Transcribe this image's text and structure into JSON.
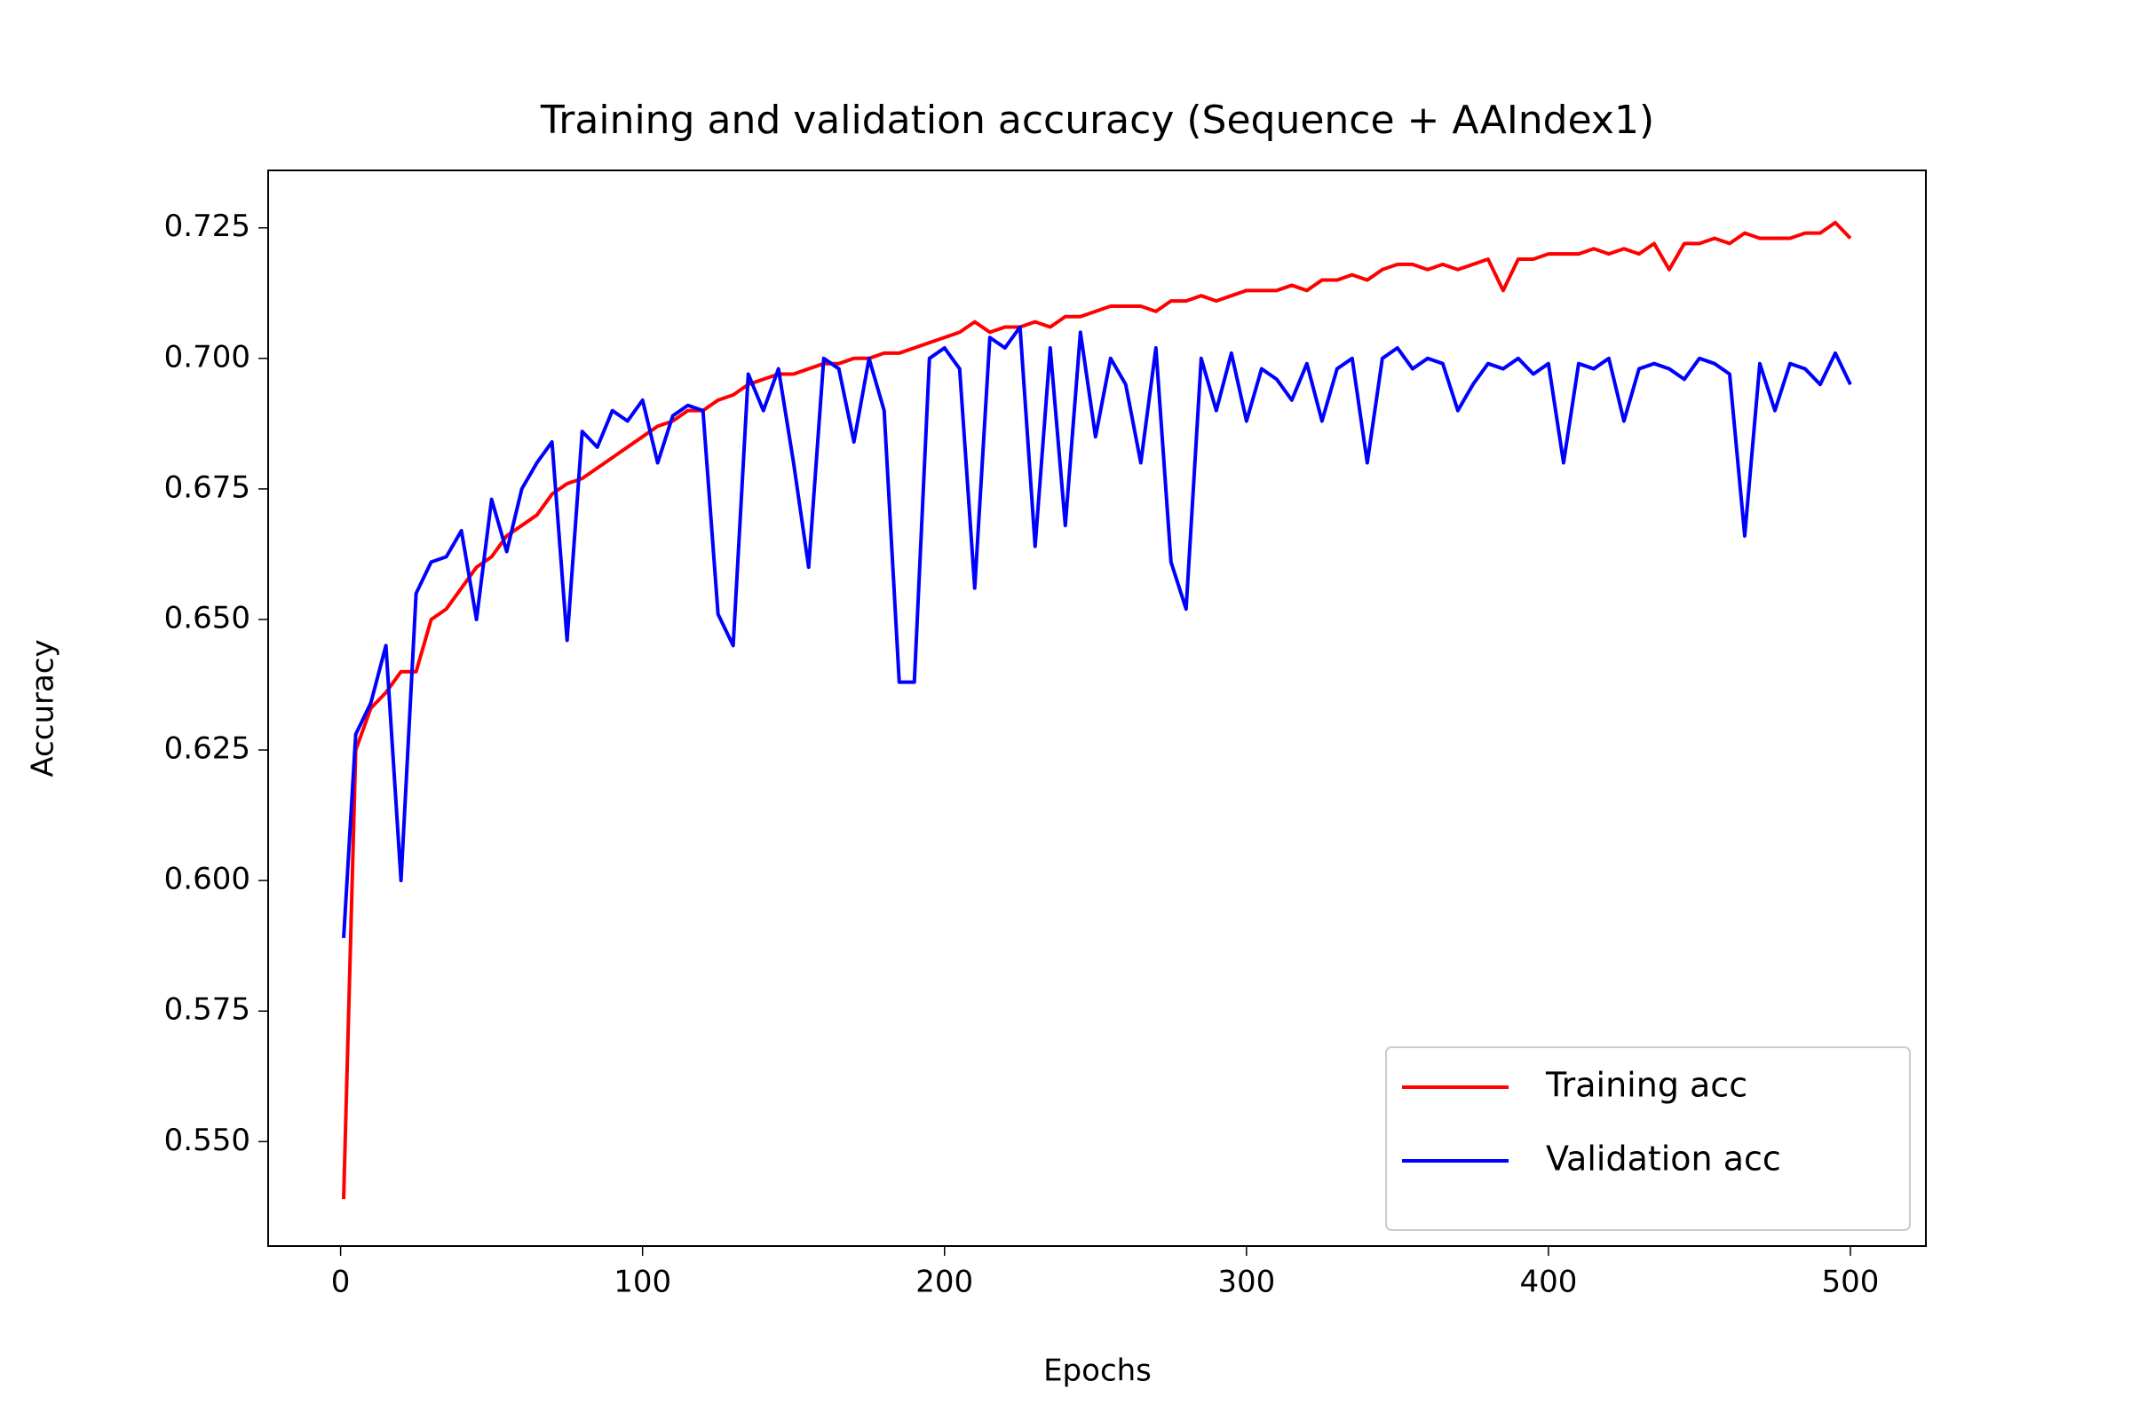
{
  "chart_data": {
    "type": "line",
    "title": "Training and validation accuracy (Sequence + AAIndex1)",
    "x_label": "Epochs",
    "y_label": "Accuracy",
    "x": [
      1,
      5,
      10,
      15,
      20,
      25,
      30,
      35,
      40,
      45,
      50,
      55,
      60,
      65,
      70,
      75,
      80,
      85,
      90,
      95,
      100,
      105,
      110,
      115,
      120,
      125,
      130,
      135,
      140,
      145,
      150,
      155,
      160,
      165,
      170,
      175,
      180,
      185,
      190,
      195,
      200,
      205,
      210,
      215,
      220,
      225,
      230,
      235,
      240,
      245,
      250,
      255,
      260,
      265,
      270,
      275,
      280,
      285,
      290,
      295,
      300,
      305,
      310,
      315,
      320,
      325,
      330,
      335,
      340,
      345,
      350,
      355,
      360,
      365,
      370,
      375,
      380,
      385,
      390,
      395,
      400,
      405,
      410,
      415,
      420,
      425,
      430,
      435,
      440,
      445,
      450,
      455,
      460,
      465,
      470,
      475,
      480,
      485,
      490,
      495,
      500
    ],
    "series": [
      {
        "name": "Training acc",
        "color": "#ff0000",
        "values": [
          0.539,
          0.625,
          0.633,
          0.636,
          0.64,
          0.64,
          0.65,
          0.652,
          0.656,
          0.66,
          0.662,
          0.666,
          0.668,
          0.67,
          0.674,
          0.676,
          0.677,
          0.679,
          0.681,
          0.683,
          0.685,
          0.687,
          0.688,
          0.69,
          0.69,
          0.692,
          0.693,
          0.695,
          0.696,
          0.697,
          0.697,
          0.698,
          0.699,
          0.699,
          0.7,
          0.7,
          0.701,
          0.701,
          0.702,
          0.703,
          0.704,
          0.705,
          0.707,
          0.705,
          0.706,
          0.706,
          0.707,
          0.706,
          0.708,
          0.708,
          0.709,
          0.71,
          0.71,
          0.71,
          0.709,
          0.711,
          0.711,
          0.712,
          0.711,
          0.712,
          0.713,
          0.713,
          0.713,
          0.714,
          0.713,
          0.715,
          0.715,
          0.716,
          0.715,
          0.717,
          0.718,
          0.718,
          0.717,
          0.718,
          0.717,
          0.718,
          0.719,
          0.713,
          0.719,
          0.719,
          0.72,
          0.72,
          0.72,
          0.721,
          0.72,
          0.721,
          0.72,
          0.722,
          0.717,
          0.722,
          0.722,
          0.723,
          0.722,
          0.724,
          0.723,
          0.723,
          0.723,
          0.724,
          0.724,
          0.726,
          0.723
        ]
      },
      {
        "name": "Validation acc",
        "color": "#0000ff",
        "values": [
          0.589,
          0.628,
          0.634,
          0.645,
          0.6,
          0.655,
          0.661,
          0.662,
          0.667,
          0.65,
          0.673,
          0.663,
          0.675,
          0.68,
          0.684,
          0.646,
          0.686,
          0.683,
          0.69,
          0.688,
          0.692,
          0.68,
          0.689,
          0.691,
          0.69,
          0.651,
          0.645,
          0.697,
          0.69,
          0.698,
          0.68,
          0.66,
          0.7,
          0.698,
          0.684,
          0.7,
          0.69,
          0.638,
          0.638,
          0.7,
          0.702,
          0.698,
          0.656,
          0.704,
          0.702,
          0.706,
          0.664,
          0.702,
          0.668,
          0.705,
          0.685,
          0.7,
          0.695,
          0.68,
          0.702,
          0.661,
          0.652,
          0.7,
          0.69,
          0.701,
          0.688,
          0.698,
          0.696,
          0.692,
          0.699,
          0.688,
          0.698,
          0.7,
          0.68,
          0.7,
          0.702,
          0.698,
          0.7,
          0.699,
          0.69,
          0.695,
          0.699,
          0.698,
          0.7,
          0.697,
          0.699,
          0.68,
          0.699,
          0.698,
          0.7,
          0.688,
          0.698,
          0.699,
          0.698,
          0.696,
          0.7,
          0.699,
          0.697,
          0.666,
          0.699,
          0.69,
          0.699,
          0.698,
          0.695,
          0.701,
          0.695
        ]
      }
    ],
    "xlim": [
      -24,
      525
    ],
    "ylim": [
      0.53,
      0.736
    ],
    "xticks": [
      0,
      100,
      200,
      300,
      400,
      500
    ],
    "yticks": [
      {
        "value": 0.55,
        "label": "0.550"
      },
      0.575,
      {
        "value": 0.6,
        "label": "0.600"
      },
      0.625,
      {
        "value": 0.65,
        "label": "0.650"
      },
      0.675,
      {
        "value": 0.7,
        "label": "0.700"
      },
      0.725
    ],
    "legend": "lower right",
    "grid": false
  }
}
